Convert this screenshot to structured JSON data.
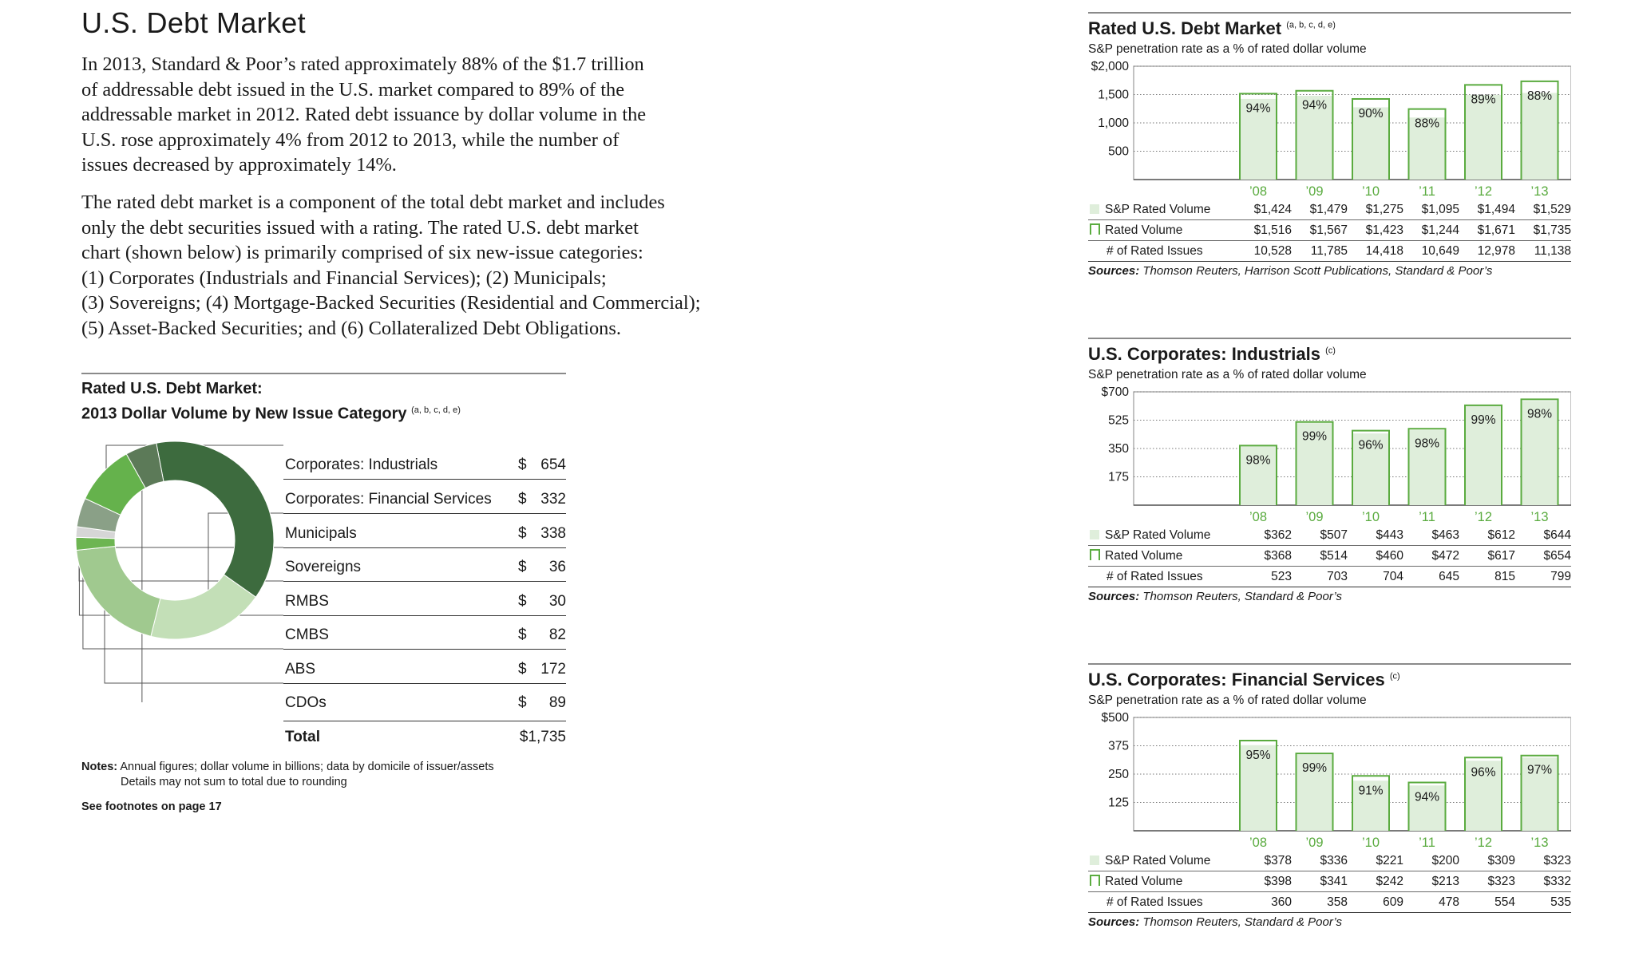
{
  "page": {
    "title": "U.S. Debt Market",
    "paragraph1_lines": [
      "In 2013, Standard & Poor’s rated approximately 88% of the $1.7 trillion",
      "of addressable debt issued in the U.S. market compared to 89% of the",
      "addressable market in 2012. Rated debt issuance by dollar volume in the",
      "U.S. rose approximately 4% from 2012 to 2013, while the number of",
      "issues decreased by approximately 14%."
    ],
    "paragraph2_lines": [
      "The rated debt market is a component of the total debt market and includes",
      "only the debt securities issued with a rating. The rated U.S. debt market",
      "chart (shown below) is primarily comprised of six new-issue categories:",
      "(1) Corporates (Industrials and Financial Services); (2) Municipals;",
      "(3) Sovereigns; (4) Mortgage-Backed Securities (Residential and Commercial);",
      "(5) Asset-Backed Securities; and (6) Collateralized Debt Obligations."
    ]
  },
  "donut": {
    "title_line1": "Rated U.S. Debt Market:",
    "title_line2": "2013 Dollar Volume by New Issue Category",
    "title_sup": "(a, b, c, d, e)",
    "currency": "$",
    "categories": [
      {
        "name": "Corporates: Industrials",
        "value": "654",
        "amount": 654,
        "color": "#3d6b3e"
      },
      {
        "name": "Corporates: Financial Services",
        "value": "332",
        "amount": 332,
        "color": "#c3dfb7"
      },
      {
        "name": "Municipals",
        "value": "338",
        "amount": 338,
        "color": "#a0c98f"
      },
      {
        "name": "Sovereigns",
        "value": "36",
        "amount": 36,
        "color": "#6db552"
      },
      {
        "name": "RMBS",
        "value": "30",
        "amount": 30,
        "color": "#d6d6d6"
      },
      {
        "name": "CMBS",
        "value": "82",
        "amount": 82,
        "color": "#8aa087"
      },
      {
        "name": "ABS",
        "value": "172",
        "amount": 172,
        "color": "#65b24c"
      },
      {
        "name": "CDOs",
        "value": "89",
        "amount": 89,
        "color": "#5c7a58"
      }
    ],
    "total_label": "Total",
    "total_value": "$1,735",
    "notes_label": "Notes:",
    "notes_line1": "Annual figures; dollar volume in billions; data by domicile of issuer/assets",
    "notes_line2": "Details may not sum to total due to rounding",
    "footnote_ref": "See footnotes on page 17"
  },
  "row_labels": {
    "sp": "S&P Rated Volume",
    "rated": "Rated Volume",
    "issues": "# of Rated Issues"
  },
  "chart_data": [
    {
      "type": "bar",
      "title": "Rated U.S. Debt Market",
      "title_sup": "(a, b, c, d, e)",
      "subtitle": "S&P penetration rate as a % of rated dollar volume",
      "categories": [
        "’08",
        "’09",
        "’10",
        "’11",
        "’12",
        "’13"
      ],
      "series": [
        {
          "name": "S&P Rated Volume",
          "values": [
            1424,
            1479,
            1275,
            1095,
            1494,
            1529
          ]
        },
        {
          "name": "Rated Volume",
          "values": [
            1516,
            1567,
            1423,
            1244,
            1671,
            1735
          ]
        }
      ],
      "penetration": [
        "94%",
        "94%",
        "90%",
        "88%",
        "89%",
        "88%"
      ],
      "ylim": [
        0,
        2000
      ],
      "yticks": [
        500,
        1000,
        1500,
        2000
      ],
      "ytick_labels": [
        "500",
        "1,000",
        "1,500",
        "$2,000"
      ],
      "table": {
        "sp": [
          "$1,424",
          "$1,479",
          "$1,275",
          "$1,095",
          "$1,494",
          "$1,529"
        ],
        "rated": [
          "$1,516",
          "$1,567",
          "$1,423",
          "$1,244",
          "$1,671",
          "$1,735"
        ],
        "issues": [
          "10,528",
          "11,785",
          "14,418",
          "10,649",
          "12,978",
          "11,138"
        ]
      },
      "sources_label": "Sources:",
      "sources": "Thomson Reuters, Harrison Scott Publications, Standard & Poor’s"
    },
    {
      "type": "bar",
      "title": "U.S. Corporates: Industrials",
      "title_sup": "(c)",
      "subtitle": "S&P penetration rate as a % of rated dollar volume",
      "categories": [
        "’08",
        "’09",
        "’10",
        "’11",
        "’12",
        "’13"
      ],
      "series": [
        {
          "name": "S&P Rated Volume",
          "values": [
            362,
            507,
            443,
            463,
            612,
            644
          ]
        },
        {
          "name": "Rated Volume",
          "values": [
            368,
            514,
            460,
            472,
            617,
            654
          ]
        }
      ],
      "penetration": [
        "98%",
        "99%",
        "96%",
        "98%",
        "99%",
        "98%"
      ],
      "ylim": [
        0,
        700
      ],
      "yticks": [
        175,
        350,
        525,
        700
      ],
      "ytick_labels": [
        "175",
        "350",
        "525",
        "$700"
      ],
      "table": {
        "sp": [
          "$362",
          "$507",
          "$443",
          "$463",
          "$612",
          "$644"
        ],
        "rated": [
          "$368",
          "$514",
          "$460",
          "$472",
          "$617",
          "$654"
        ],
        "issues": [
          "523",
          "703",
          "704",
          "645",
          "815",
          "799"
        ]
      },
      "sources_label": "Sources:",
      "sources": "Thomson Reuters, Standard & Poor’s"
    },
    {
      "type": "bar",
      "title": "U.S. Corporates: Financial Services",
      "title_sup": "(c)",
      "subtitle": "S&P penetration rate as a % of rated dollar volume",
      "categories": [
        "’08",
        "’09",
        "’10",
        "’11",
        "’12",
        "’13"
      ],
      "series": [
        {
          "name": "S&P Rated Volume",
          "values": [
            378,
            336,
            221,
            200,
            309,
            323
          ]
        },
        {
          "name": "Rated Volume",
          "values": [
            398,
            341,
            242,
            213,
            323,
            332
          ]
        }
      ],
      "penetration": [
        "95%",
        "99%",
        "91%",
        "94%",
        "96%",
        "97%"
      ],
      "ylim": [
        0,
        500
      ],
      "yticks": [
        125,
        250,
        375,
        500
      ],
      "ytick_labels": [
        "125",
        "250",
        "375",
        "$500"
      ],
      "table": {
        "sp": [
          "$378",
          "$336",
          "$221",
          "$200",
          "$309",
          "$323"
        ],
        "rated": [
          "$398",
          "$341",
          "$242",
          "$213",
          "$323",
          "$332"
        ],
        "issues": [
          "360",
          "358",
          "609",
          "478",
          "554",
          "535"
        ]
      },
      "sources_label": "Sources:",
      "sources": "Thomson Reuters, Standard & Poor’s"
    }
  ]
}
